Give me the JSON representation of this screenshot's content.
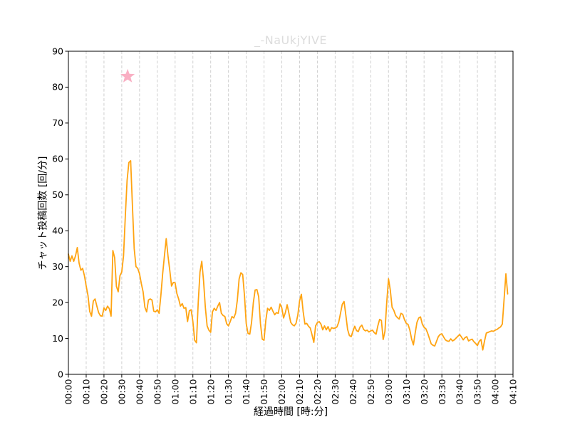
{
  "figure": {
    "background_color": "#ffffff"
  },
  "chart_data": {
    "type": "line",
    "title": "_-NaUkjYIVE",
    "title_color": "#dcdcdc",
    "xlabel": "経過時間 [時:分]",
    "ylabel": "チャット投稿回数 [回/分]",
    "xlim_minutes": [
      0,
      250
    ],
    "ylim": [
      0,
      90
    ],
    "y_ticks": [
      0,
      10,
      20,
      30,
      40,
      50,
      60,
      70,
      80,
      90
    ],
    "x_tick_labels": [
      "00:00",
      "00:10",
      "00:20",
      "00:30",
      "00:40",
      "00:50",
      "01:00",
      "01:10",
      "01:20",
      "01:30",
      "01:40",
      "01:50",
      "02:00",
      "02:10",
      "02:20",
      "02:30",
      "02:40",
      "02:50",
      "03:00",
      "03:10",
      "03:20",
      "03:30",
      "03:40",
      "03:50",
      "04:00",
      "04:10"
    ],
    "x_tick_minutes": [
      0,
      10,
      20,
      30,
      40,
      50,
      60,
      70,
      80,
      90,
      100,
      110,
      120,
      130,
      140,
      150,
      160,
      170,
      180,
      190,
      200,
      210,
      220,
      230,
      240,
      250
    ],
    "grid": {
      "vertical": true,
      "horizontal": false,
      "style": "dashed",
      "color": "#cfcfcf"
    },
    "legend": "none",
    "line_color": "#ffa412",
    "line_width": 1.8,
    "series": [
      {
        "name": "chat-posts-per-minute",
        "x_start_minute": 0,
        "x_step_minutes": 1,
        "values": [
          33.5,
          31.5,
          33,
          31.5,
          33,
          35.3,
          31,
          29,
          29.5,
          27.5,
          24.6,
          22,
          17.5,
          16.2,
          20.4,
          21,
          19,
          17.2,
          16.3,
          16.2,
          18.5,
          17.8,
          19,
          18.3,
          16.2,
          34.5,
          32.5,
          24.5,
          23,
          27.5,
          28.5,
          33,
          44,
          54,
          59,
          59.5,
          47,
          35,
          30,
          29.5,
          28,
          25.3,
          23,
          18.7,
          17.4,
          20.7,
          21,
          20.7,
          17.6,
          17.4,
          18,
          17,
          22,
          28,
          33,
          37.8,
          33,
          29,
          24.6,
          25.6,
          25.5,
          22.5,
          21,
          19,
          19.7,
          18.4,
          18.6,
          14.7,
          17.7,
          18,
          14.7,
          9.5,
          8.8,
          20,
          28.5,
          31.5,
          26,
          18.7,
          13.5,
          12.3,
          11.7,
          17.4,
          18.4,
          17.8,
          19,
          20,
          17,
          16.4,
          16.1,
          14.1,
          13.5,
          14.7,
          16.1,
          15.7,
          17,
          20.7,
          26.6,
          28.3,
          27.8,
          22,
          14.1,
          11.4,
          11.2,
          14.5,
          20,
          23.5,
          23.6,
          21.6,
          14.1,
          9.8,
          9.5,
          15,
          18.4,
          17.8,
          18.7,
          17.6,
          16.6,
          17.2,
          17,
          19.6,
          18.5,
          15.7,
          17.2,
          19.4,
          17,
          14.5,
          13.8,
          13.5,
          14.2,
          16.5,
          20.5,
          22.3,
          17.5,
          14,
          14.2,
          13.4,
          12.9,
          11,
          8.9,
          13.5,
          14.4,
          14.7,
          14,
          12.4,
          13.5,
          12.4,
          13.3,
          12,
          13,
          12.8,
          12.9,
          13.2,
          14.5,
          17,
          19.5,
          20.3,
          16.5,
          12.5,
          10.8,
          10.5,
          12,
          13.4,
          12.2,
          11.9,
          13.2,
          13.7,
          12.5,
          12.1,
          12.3,
          11.8,
          12.1,
          12.3,
          11.6,
          11.2,
          13.5,
          15.3,
          15,
          9.7,
          12,
          20,
          26.6,
          23.5,
          18.7,
          17.8,
          16.4,
          15.8,
          15.4,
          17,
          16.7,
          15.2,
          14.2,
          13.9,
          12.3,
          9.8,
          8.2,
          11.5,
          14.5,
          15.7,
          16,
          14,
          13.1,
          12.7,
          11.5,
          10,
          8.5,
          8.1,
          7.9,
          9.2,
          10.5,
          11.1,
          11.3,
          10.4,
          9.6,
          9.3,
          9.2,
          9.9,
          9.3,
          9.6,
          10.1,
          10.6,
          11.1,
          10.4,
          9.6,
          10.2,
          10.5,
          9.3,
          9.6,
          9.8,
          9.1,
          8.6,
          8,
          9.2,
          9.7,
          6.8,
          9.3,
          11.5,
          11.7,
          11.9,
          12.1,
          12,
          12.3,
          12.5,
          12.9,
          13.2,
          14,
          21,
          28,
          22.4
        ]
      }
    ],
    "annotation_marker": {
      "type": "star",
      "x_minute": 33.3,
      "y": 83,
      "color": "#f9afc3"
    },
    "axis_color": "#000000"
  }
}
